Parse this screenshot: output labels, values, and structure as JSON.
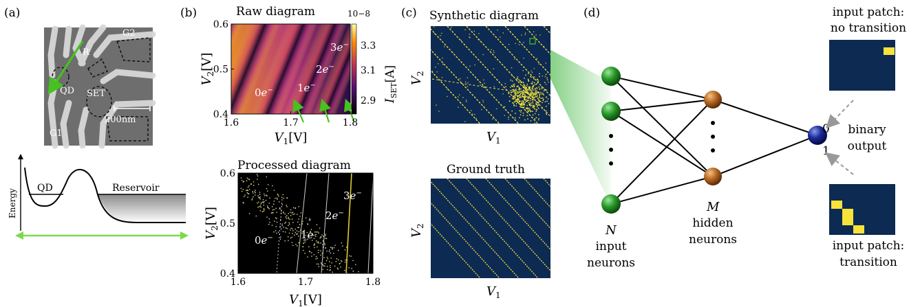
{
  "panels": {
    "a": {
      "label": "(a)",
      "sem_labels": {
        "g2": "G2",
        "r": "R",
        "qd": "QD",
        "set": "SET",
        "g1": "G1",
        "scale": "200nm"
      },
      "energy": {
        "ylabel": "Energy",
        "qd": "QD",
        "reservoir": "Reservoir"
      }
    },
    "b": {
      "label": "(b)",
      "raw_title": "Raw diagram",
      "processed_title": "Processed diagram",
      "colorbar_exponent": "10−8",
      "colorbar_ticks": [
        "3.3",
        "3.1",
        "2.9"
      ],
      "colorbar_label": "I",
      "colorbar_label_sub": "SET",
      "colorbar_label_unit": "[A]",
      "charge_labels": [
        "0e−",
        "1e−",
        "2e−",
        "3e−"
      ]
    },
    "c": {
      "label": "(c)",
      "synthetic_title": "Synthetic diagram",
      "ground_truth_title": "Ground truth",
      "xlabel": "V",
      "xlabel_sub": "1",
      "ylabel": "V",
      "ylabel_sub": "2"
    },
    "d": {
      "label": "(d)",
      "input_label": {
        "symbol": "N",
        "line1": "input",
        "line2": "neurons"
      },
      "hidden_label": {
        "symbol": "M",
        "line1": "hidden",
        "line2": "neurons"
      },
      "output_label": {
        "line1": "binary",
        "line2": "output",
        "zero": "0",
        "one": "1"
      },
      "patch_no": {
        "line1": "input patch:",
        "line2": "no transition"
      },
      "patch_yes": {
        "line1": "input patch:",
        "line2": "transition"
      }
    }
  },
  "colors": {
    "navy": "#0d2a52",
    "yellow": "#f7e33a",
    "green_arrow": "#46c21f",
    "node_green": "#1f8a1f",
    "node_brown": "#b0621a",
    "node_blue": "#10207a"
  },
  "chart_data": [
    {
      "type": "heatmap",
      "title": "Raw diagram",
      "xlabel": "V1[V]",
      "ylabel": "V2[V]",
      "xlim": [
        1.6,
        1.8
      ],
      "ylim": [
        0.4,
        0.6
      ],
      "xticks": [
        "1.6",
        "1.7",
        "1.8"
      ],
      "yticks": [
        "0.4",
        "0.5",
        "0.6"
      ],
      "colorbar": {
        "label": "ISET[A]",
        "exponent": "10−8",
        "ticks": [
          2.9,
          3.1,
          3.3
        ]
      }
    },
    {
      "type": "scatter",
      "title": "Processed diagram",
      "xlabel": "V1[V]",
      "ylabel": "V2[V]",
      "xlim": [
        1.6,
        1.8
      ],
      "ylim": [
        0.4,
        0.6
      ],
      "xticks": [
        "1.6",
        "1.7",
        "1.8"
      ],
      "yticks": [
        "0.4",
        "0.5",
        "0.6"
      ]
    },
    {
      "type": "scatter",
      "title": "Synthetic diagram",
      "xlabel": "V1",
      "ylabel": "V2"
    },
    {
      "type": "scatter",
      "title": "Ground truth",
      "xlabel": "V1",
      "ylabel": "V2"
    }
  ]
}
